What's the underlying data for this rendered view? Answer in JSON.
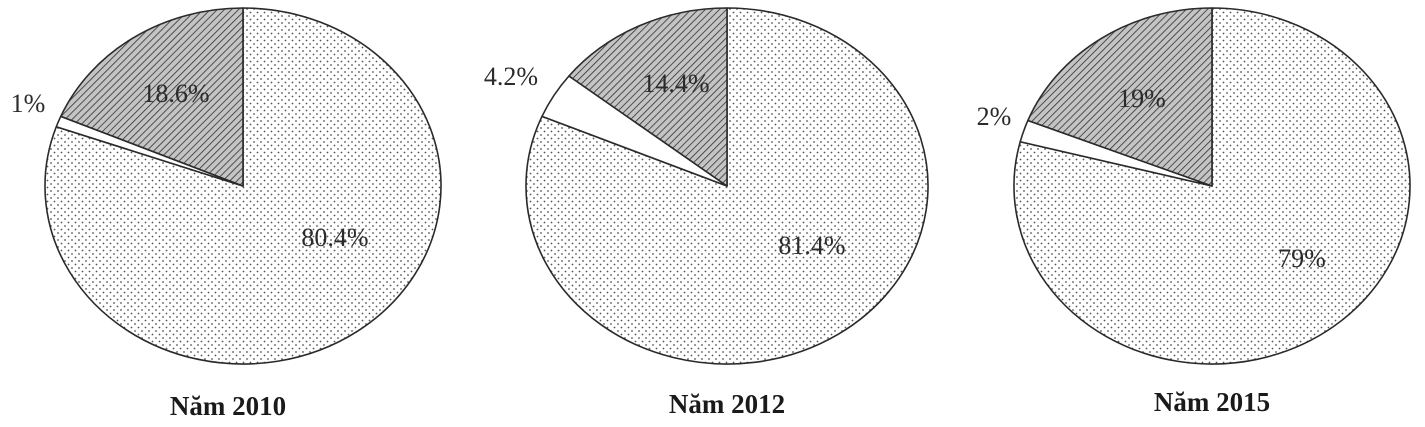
{
  "chart_data": [
    {
      "type": "pie",
      "title": "Năm 2010",
      "slices": [
        {
          "value": 80.4,
          "label": "80.4%",
          "pattern": "dots"
        },
        {
          "value": 1,
          "label": "1%",
          "pattern": "blank"
        },
        {
          "value": 18.6,
          "label": "18.6%",
          "pattern": "hatch"
        }
      ]
    },
    {
      "type": "pie",
      "title": "Năm 2012",
      "slices": [
        {
          "value": 81.4,
          "label": "81.4%",
          "pattern": "dots"
        },
        {
          "value": 4.2,
          "label": "4.2%",
          "pattern": "blank"
        },
        {
          "value": 14.4,
          "label": "14.4%",
          "pattern": "hatch"
        }
      ]
    },
    {
      "type": "pie",
      "title": "Năm 2015",
      "slices": [
        {
          "value": 79,
          "label": "79%",
          "pattern": "dots"
        },
        {
          "value": 2,
          "label": "2%",
          "pattern": "blank"
        },
        {
          "value": 19,
          "label": "19%",
          "pattern": "hatch"
        }
      ]
    }
  ],
  "colors": {
    "outline": "#2a2a2a",
    "dot": "#555555",
    "hatch_fill": "#b8b8b8",
    "hatch_line": "#303030"
  }
}
